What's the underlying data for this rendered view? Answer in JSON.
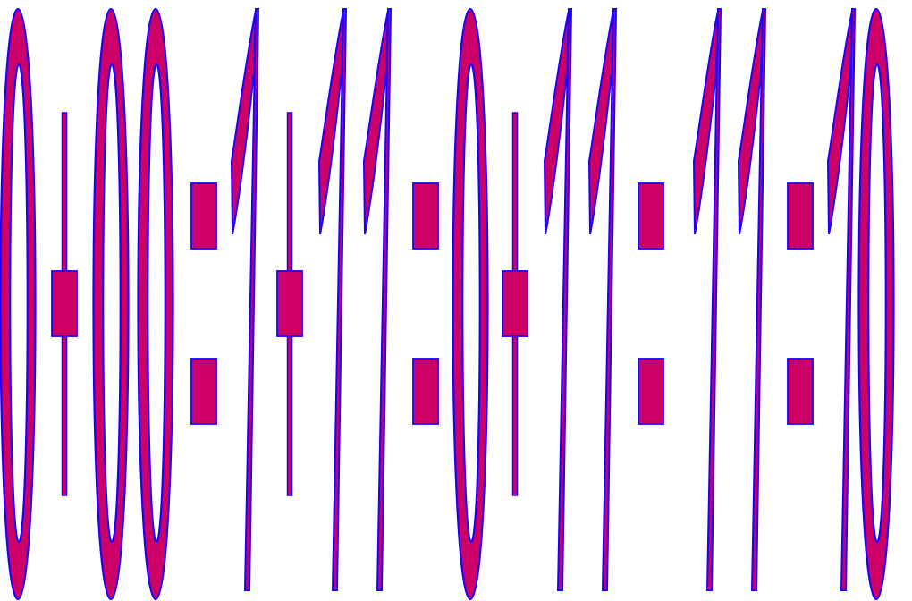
{
  "colors": {
    "fill": "#cc0066",
    "stroke": "#1a00ff",
    "background": "#ffffff"
  },
  "glyph_sequence": [
    "zero",
    "colon",
    "zero",
    "zero",
    "colon",
    "one",
    "colon",
    "one",
    "one",
    "colon",
    "zero",
    "colon",
    "one",
    "one",
    "colon",
    "one",
    "one",
    "colon",
    "one",
    "zero"
  ]
}
